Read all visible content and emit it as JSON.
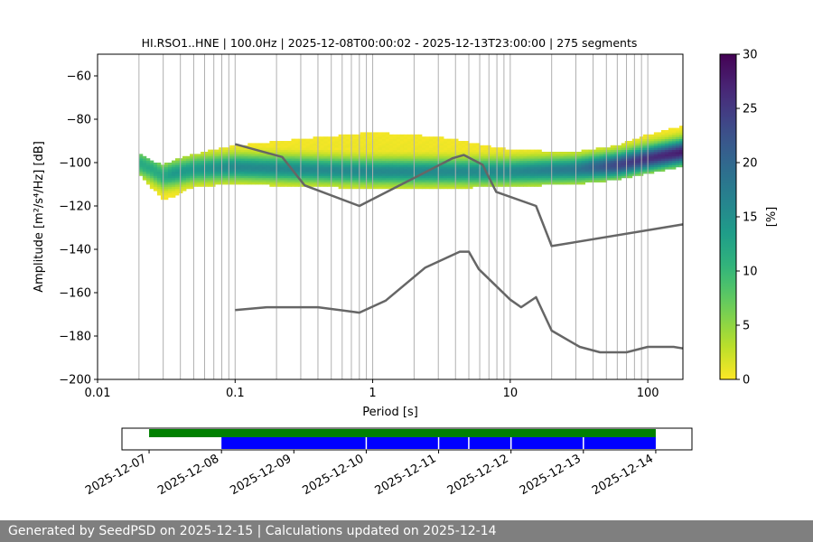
{
  "footer": {
    "text": "Generated by SeedPSD on 2025-12-15 | Calculations updated on 2025-12-14"
  },
  "chart_data": [
    {
      "type": "heatmap",
      "title": "HI.RSO1..HNE | 100.0Hz | 2025-12-08T00:00:02 - 2025-12-13T23:00:00 | 275 segments",
      "xlabel": "Period [s]",
      "ylabel": "Amplitude [m²/s⁴/Hz] [dB]",
      "x_scale": "log",
      "xlim": [
        0.01,
        180
      ],
      "ylim": [
        -200,
        -50
      ],
      "x_ticks": [
        {
          "value": 0.01,
          "label": "0.01"
        },
        {
          "value": 0.1,
          "label": "0.1"
        },
        {
          "value": 1,
          "label": "1"
        },
        {
          "value": 10,
          "label": "10"
        },
        {
          "value": 100,
          "label": "100"
        }
      ],
      "y_ticks": [
        -60,
        -80,
        -100,
        -120,
        -140,
        -160,
        -180,
        -200
      ],
      "grid": "vertical lines at every log decade subdivision",
      "colorbar": {
        "label": "[%]",
        "min": 0,
        "max": 30,
        "ticks": [
          0,
          5,
          10,
          15,
          20,
          25,
          30
        ],
        "colormap": "viridis reversed (yellow = 0, dark purple = 30)"
      },
      "density": {
        "columns": [
          {
            "period": 0.02,
            "center": -100,
            "spread": 4,
            "extend_up": 5,
            "extend_down": 5,
            "peak": 12
          },
          {
            "period": 0.025,
            "center": -103,
            "spread": 4,
            "extend_up": 4,
            "extend_down": 9,
            "peak": 12
          },
          {
            "period": 0.03,
            "center": -106,
            "spread": 4,
            "extend_up": 5,
            "extend_down": 11,
            "peak": 12
          },
          {
            "period": 0.035,
            "center": -105,
            "spread": 4,
            "extend_up": 6,
            "extend_down": 11,
            "peak": 14
          },
          {
            "period": 0.05,
            "center": -103,
            "spread": 4,
            "extend_up": 7,
            "extend_down": 8,
            "peak": 14
          },
          {
            "period": 0.1,
            "center": -102,
            "spread": 4,
            "extend_up": 10,
            "extend_down": 8,
            "peak": 16
          },
          {
            "period": 0.3,
            "center": -103,
            "spread": 4,
            "extend_up": 14,
            "extend_down": 8,
            "peak": 16
          },
          {
            "period": 1,
            "center": -104,
            "spread": 4,
            "extend_up": 18,
            "extend_down": 8,
            "peak": 16
          },
          {
            "period": 3,
            "center": -104,
            "spread": 4,
            "extend_up": 16,
            "extend_down": 8,
            "peak": 16
          },
          {
            "period": 10,
            "center": -104,
            "spread": 4,
            "extend_up": 10,
            "extend_down": 7,
            "peak": 16
          },
          {
            "period": 30,
            "center": -103,
            "spread": 4,
            "extend_up": 8,
            "extend_down": 7,
            "peak": 18
          },
          {
            "period": 60,
            "center": -101,
            "spread": 4,
            "extend_up": 9,
            "extend_down": 7,
            "peak": 24
          },
          {
            "period": 100,
            "center": -98,
            "spread": 4,
            "extend_up": 11,
            "extend_down": 7,
            "peak": 26
          },
          {
            "period": 180,
            "center": -95,
            "spread": 4,
            "extend_up": 12,
            "extend_down": 7,
            "peak": 28
          }
        ]
      },
      "series": [
        {
          "x": [
            0.1,
            0.22,
            0.32,
            0.8,
            3.8,
            4.6,
            6.3,
            7.9,
            15.4,
            20,
            180
          ],
          "y": [
            -91.5,
            -97.4,
            -110.5,
            -120,
            -98,
            -96.5,
            -101,
            -113.5,
            -120,
            -138.5,
            -128.5
          ]
        },
        {
          "x": [
            0.1,
            0.17,
            0.4,
            0.8,
            1.24,
            2.4,
            4.3,
            5.0,
            5.9,
            10,
            12,
            15.4,
            20,
            32,
            45,
            70,
            100,
            154,
            180
          ],
          "y": [
            -168,
            -166.7,
            -166.7,
            -169.2,
            -163.7,
            -148.5,
            -141.1,
            -141.1,
            -149.1,
            -163.2,
            -166.7,
            -162.1,
            -177.5,
            -185,
            -187.5,
            -187.5,
            -185,
            -185,
            -185.7
          ]
        }
      ]
    },
    {
      "type": "timeline",
      "x_ticks": [
        "2025-12-07",
        "2025-12-08",
        "2025-12-09",
        "2025-12-10",
        "2025-12-11",
        "2025-12-12",
        "2025-12-13",
        "2025-12-14"
      ],
      "xlim": [
        "2025-12-06T15:00",
        "2025-12-14T12:00"
      ],
      "green_span": {
        "start": "2025-12-07T00:00",
        "end": "2025-12-14T00:00",
        "color": "#008000"
      },
      "blue_span": {
        "start": "2025-12-08T00:00",
        "end": "2025-12-14T00:00",
        "color": "#0000ff"
      },
      "blue_gaps": [
        "2025-12-10T00:00",
        "2025-12-11T00:00",
        "2025-12-11T10:00",
        "2025-12-12T00:00",
        "2025-12-13T00:00"
      ]
    }
  ]
}
